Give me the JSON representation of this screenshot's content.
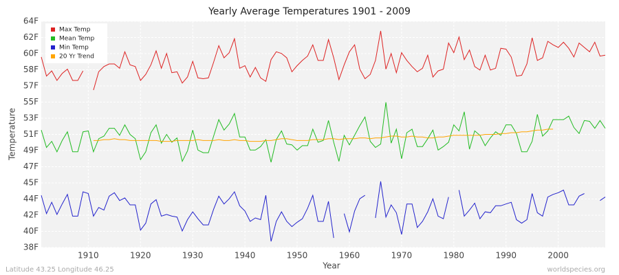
{
  "chart_data": {
    "type": "line",
    "title": "Yearly Average Temperatures 1901 - 2009",
    "xlabel": "Year",
    "ylabel": "Temperature",
    "footer_left": "Latitude 43.25 Longitude 46.25",
    "footer_right": "worldspecies.org",
    "x": [
      1901,
      1902,
      1903,
      1904,
      1905,
      1906,
      1907,
      1908,
      1909,
      1910,
      1911,
      1912,
      1913,
      1914,
      1915,
      1916,
      1917,
      1918,
      1919,
      1920,
      1921,
      1922,
      1923,
      1924,
      1925,
      1926,
      1927,
      1928,
      1929,
      1930,
      1931,
      1932,
      1933,
      1934,
      1935,
      1936,
      1937,
      1938,
      1939,
      1940,
      1941,
      1942,
      1943,
      1944,
      1945,
      1946,
      1947,
      1948,
      1949,
      1950,
      1951,
      1952,
      1953,
      1954,
      1955,
      1956,
      1957,
      1958,
      1959,
      1960,
      1961,
      1962,
      1963,
      1964,
      1965,
      1966,
      1967,
      1968,
      1969,
      1970,
      1971,
      1972,
      1973,
      1974,
      1975,
      1976,
      1977,
      1978,
      1979,
      1980,
      1981,
      1982,
      1983,
      1984,
      1985,
      1986,
      1987,
      1988,
      1989,
      1990,
      1991,
      1992,
      1993,
      1994,
      1995,
      1996,
      1997,
      1998,
      1999,
      2000,
      2001,
      2002,
      2003,
      2004,
      2005,
      2006,
      2007,
      2008,
      2009
    ],
    "series": [
      {
        "name": "Max Temp",
        "color": "#dd2222",
        "values": [
          59.9,
          57.7,
          58.3,
          57.2,
          58.0,
          58.5,
          57.2,
          57.2,
          58.3,
          null,
          56.1,
          58.2,
          58.8,
          59.1,
          59.1,
          58.6,
          60.5,
          59.0,
          58.8,
          57.2,
          57.9,
          59.0,
          60.6,
          58.6,
          60.3,
          58.1,
          58.2,
          56.9,
          57.6,
          59.4,
          57.5,
          57.4,
          57.5,
          59.3,
          61.2,
          59.8,
          60.4,
          62.0,
          58.6,
          58.9,
          57.6,
          58.7,
          57.5,
          57.1,
          59.6,
          60.5,
          60.3,
          59.8,
          58.2,
          58.9,
          59.5,
          60.0,
          61.3,
          59.5,
          59.5,
          61.9,
          59.8,
          57.3,
          59.0,
          60.5,
          61.3,
          58.5,
          57.4,
          57.9,
          59.5,
          62.9,
          58.5,
          60.3,
          58.1,
          60.4,
          59.5,
          58.8,
          58.2,
          58.6,
          60.1,
          57.6,
          58.3,
          58.5,
          61.5,
          60.4,
          62.2,
          59.6,
          60.7,
          58.8,
          58.4,
          60.1,
          58.4,
          58.6,
          60.9,
          60.8,
          59.9,
          57.7,
          57.8,
          59.1,
          62.1,
          59.5,
          59.8,
          61.7,
          61.3,
          61.0,
          61.6,
          60.9,
          59.9,
          61.5,
          61.0,
          60.5,
          61.6,
          60.0,
          60.1
        ]
      },
      {
        "name": "Mean Temp",
        "color": "#22bb22",
        "values": [
          51.5,
          49.5,
          50.2,
          49.0,
          50.3,
          51.3,
          49.0,
          49.0,
          51.3,
          51.4,
          49.0,
          50.5,
          50.8,
          51.7,
          51.7,
          50.9,
          52.1,
          51.0,
          50.5,
          48.1,
          49.0,
          51.2,
          52.1,
          50.0,
          51.0,
          50.1,
          50.6,
          47.9,
          49.1,
          51.5,
          49.2,
          48.9,
          48.9,
          50.8,
          52.7,
          51.5,
          52.2,
          53.4,
          50.7,
          50.7,
          49.2,
          49.2,
          49.6,
          50.4,
          47.8,
          50.4,
          51.4,
          49.9,
          49.8,
          49.2,
          49.7,
          49.7,
          51.6,
          50.1,
          50.3,
          52.6,
          50.1,
          47.9,
          50.9,
          49.8,
          50.9,
          52.0,
          53.0,
          50.2,
          49.5,
          49.9,
          54.7,
          50.0,
          51.6,
          48.2,
          51.2,
          51.6,
          49.6,
          49.6,
          50.5,
          51.5,
          49.2,
          49.6,
          50.1,
          52.1,
          51.4,
          53.6,
          49.3,
          51.4,
          50.9,
          49.7,
          50.6,
          51.3,
          50.9,
          52.1,
          52.1,
          51.1,
          49.0,
          49.0,
          50.2,
          53.3,
          50.8,
          51.4,
          52.7,
          52.7,
          52.7,
          53.1,
          51.8,
          51.1,
          52.6,
          52.5,
          51.7,
          52.6,
          51.7
        ]
      },
      {
        "name": "Min Temp",
        "color": "#2222cc",
        "values": [
          44.0,
          41.9,
          43.2,
          41.8,
          43.0,
          44.1,
          41.6,
          41.6,
          44.4,
          44.2,
          41.6,
          42.6,
          42.3,
          43.9,
          44.3,
          43.4,
          43.7,
          42.9,
          42.9,
          40.0,
          40.8,
          43.0,
          43.5,
          41.6,
          41.8,
          41.6,
          41.5,
          39.9,
          41.2,
          42.1,
          41.3,
          40.6,
          40.6,
          42.4,
          43.9,
          43.0,
          43.6,
          44.4,
          42.8,
          42.2,
          41.0,
          41.4,
          41.2,
          44.0,
          38.7,
          41.0,
          42.1,
          41.0,
          40.4,
          40.9,
          41.3,
          42.5,
          44.0,
          41.0,
          41.0,
          43.3,
          39.1,
          null,
          41.9,
          39.8,
          42.2,
          43.6,
          44.0,
          null,
          41.4,
          45.6,
          41.5,
          42.9,
          42.0,
          39.5,
          43.0,
          43.0,
          40.3,
          41.0,
          42.1,
          43.6,
          41.6,
          41.3,
          43.8,
          null,
          44.6,
          41.6,
          42.3,
          43.1,
          41.3,
          42.1,
          42.0,
          42.8,
          42.8,
          43.0,
          43.2,
          41.2,
          40.8,
          41.2,
          44.2,
          42.0,
          41.6,
          43.8,
          44.1,
          44.3,
          44.6,
          42.9,
          42.9,
          43.9,
          44.2,
          null,
          null,
          43.4,
          43.8
        ]
      },
      {
        "name": "20 Yr Trend",
        "color": "#ffa500",
        "values": [
          null,
          null,
          null,
          null,
          null,
          null,
          null,
          null,
          null,
          null,
          50.3,
          50.3,
          50.4,
          50.4,
          50.5,
          50.4,
          50.4,
          50.3,
          50.3,
          50.3,
          50.3,
          50.3,
          50.3,
          50.2,
          50.2,
          50.2,
          50.3,
          50.3,
          50.3,
          50.3,
          50.4,
          50.3,
          50.3,
          50.3,
          50.4,
          50.3,
          50.3,
          50.4,
          50.3,
          50.3,
          50.2,
          50.2,
          50.2,
          50.3,
          50.3,
          50.4,
          50.5,
          50.5,
          50.4,
          50.3,
          50.3,
          50.3,
          50.4,
          50.4,
          50.4,
          50.5,
          50.5,
          50.4,
          50.5,
          50.5,
          50.5,
          50.6,
          50.6,
          50.5,
          50.6,
          50.6,
          50.7,
          50.8,
          50.8,
          50.7,
          50.7,
          50.8,
          50.7,
          50.7,
          50.6,
          50.6,
          50.7,
          50.7,
          50.8,
          50.9,
          50.9,
          50.9,
          50.9,
          50.9,
          50.9,
          51.0,
          51.0,
          51.0,
          51.1,
          51.1,
          51.2,
          51.2,
          51.3,
          51.3,
          51.4,
          51.5,
          51.5,
          51.6,
          51.6,
          null,
          null,
          null,
          null,
          null,
          null,
          null,
          null,
          null,
          null
        ]
      }
    ],
    "xlim": [
      1901,
      2009
    ],
    "xticks": [
      1910,
      1920,
      1930,
      1940,
      1950,
      1960,
      1970,
      1980,
      1990,
      2000
    ],
    "ylim": [
      38,
      64
    ],
    "yticks": [
      {
        "value": 38,
        "label": "38F"
      },
      {
        "value": 39.86,
        "label": "40F"
      },
      {
        "value": 41.71,
        "label": "42F"
      },
      {
        "value": 43.57,
        "label": "44F"
      },
      {
        "value": 45.43,
        "label": "45F"
      },
      {
        "value": 47.29,
        "label": "47F"
      },
      {
        "value": 49.14,
        "label": "49F"
      },
      {
        "value": 51,
        "label": "51F"
      },
      {
        "value": 52.86,
        "label": "53F"
      },
      {
        "value": 54.71,
        "label": "55F"
      },
      {
        "value": 56.57,
        "label": "57F"
      },
      {
        "value": 58.43,
        "label": "58F"
      },
      {
        "value": 60.29,
        "label": "60F"
      },
      {
        "value": 62.14,
        "label": "62F"
      },
      {
        "value": 64,
        "label": "64F"
      }
    ],
    "grid": true,
    "legend": "top-left"
  }
}
